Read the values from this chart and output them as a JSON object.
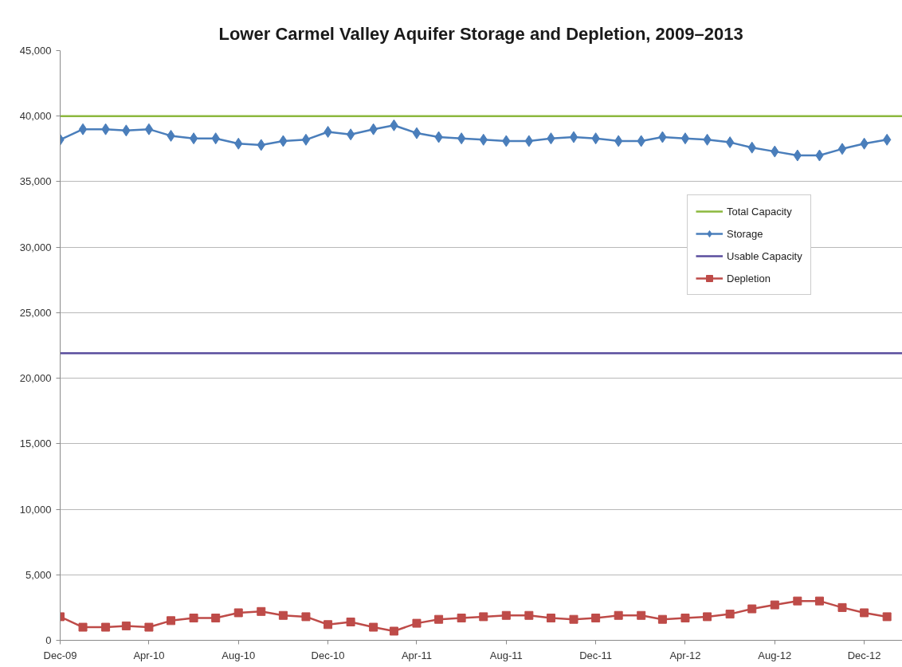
{
  "chart_data": {
    "type": "line",
    "title": "Lower Carmel Valley Aquifer Storage and Depletion, 2009–2013",
    "x": [
      "2009-12",
      "2010-01",
      "2010-02",
      "2010-03",
      "2010-04",
      "2010-05",
      "2010-06",
      "2010-07",
      "2010-08",
      "2010-09",
      "2010-10",
      "2010-11",
      "2010-12",
      "2011-01",
      "2011-02",
      "2011-03",
      "2011-04",
      "2011-05",
      "2011-06",
      "2011-07",
      "2011-08",
      "2011-09",
      "2011-10",
      "2011-11",
      "2011-12",
      "2012-01",
      "2012-02",
      "2012-03",
      "2012-04",
      "2012-05",
      "2012-06",
      "2012-07",
      "2012-08",
      "2012-09",
      "2012-10",
      "2012-11",
      "2012-12",
      "2013-01"
    ],
    "series": [
      {
        "name": "Total Capacity",
        "color": "#8cb83e",
        "marker": "none",
        "x": [
          "2009-12-01",
          "2013-01-22"
        ],
        "values": [
          40000,
          40000
        ]
      },
      {
        "name": "Storage",
        "color": "#4a7ebb",
        "marker": "diamond",
        "values": [
          38200,
          39000,
          39000,
          38900,
          39000,
          38500,
          38300,
          38300,
          37900,
          37800,
          38100,
          38200,
          38800,
          38600,
          39000,
          39300,
          38700,
          38400,
          38300,
          38200,
          38100,
          38100,
          38300,
          38400,
          38300,
          38100,
          38100,
          38400,
          38300,
          38200,
          38000,
          37600,
          37300,
          37000,
          37000,
          37500,
          37900,
          38200
        ]
      },
      {
        "name": "Usable Capacity",
        "color": "#5a4e9e",
        "marker": "none",
        "x": [
          "2009-12-01",
          "2013-01-22"
        ],
        "values": [
          21900,
          21900
        ]
      },
      {
        "name": "Depletion",
        "color": "#be4b48",
        "marker": "square",
        "values": [
          1800,
          1000,
          1000,
          1100,
          1000,
          1500,
          1700,
          1700,
          2100,
          2200,
          1900,
          1800,
          1200,
          1400,
          1000,
          700,
          1300,
          1600,
          1700,
          1800,
          1900,
          1900,
          1700,
          1600,
          1700,
          1900,
          1900,
          1600,
          1700,
          1800,
          2000,
          2400,
          2700,
          3000,
          3000,
          2500,
          2100,
          1800
        ]
      }
    ],
    "xlim": [
      "2009-12-01",
      "2013-01-22"
    ],
    "xticks": [
      {
        "value": "2009-12",
        "label": "Dec-09"
      },
      {
        "value": "2010-04",
        "label": "Apr-10"
      },
      {
        "value": "2010-08",
        "label": "Aug-10"
      },
      {
        "value": "2010-12",
        "label": "Dec-10"
      },
      {
        "value": "2011-04",
        "label": "Apr-11"
      },
      {
        "value": "2011-08",
        "label": "Aug-11"
      },
      {
        "value": "2011-12",
        "label": "Dec-11"
      },
      {
        "value": "2012-04",
        "label": "Apr-12"
      },
      {
        "value": "2012-08",
        "label": "Aug-12"
      },
      {
        "value": "2012-12",
        "label": "Dec-12"
      }
    ],
    "ylim": [
      0,
      45000
    ],
    "yticks": [
      0,
      {
        "value": 5000,
        "label": "5,000"
      },
      {
        "value": 10000,
        "label": "10,000"
      },
      {
        "value": 15000,
        "label": "15,000"
      },
      {
        "value": 20000,
        "label": "20,000"
      },
      {
        "value": 25000,
        "label": "25,000"
      },
      {
        "value": 30000,
        "label": "30,000"
      },
      {
        "value": 35000,
        "label": "35,000"
      },
      {
        "value": 40000,
        "label": "40,000"
      },
      {
        "value": 45000,
        "label": "45,000"
      }
    ],
    "grid": "y",
    "legend": "right"
  }
}
